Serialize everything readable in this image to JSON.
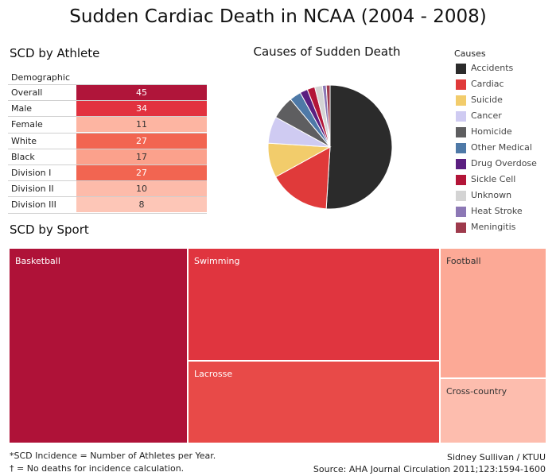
{
  "title": "Sudden Cardiac Death in NCAA (2004 - 2008)",
  "athlete_table": {
    "title": "SCD by Athlete",
    "column_header": "Demographic",
    "rows": [
      {
        "label": "Overall",
        "value": "45",
        "color": "#B0153A",
        "text_color": "#ffffff"
      },
      {
        "label": "Male",
        "value": "34",
        "color": "#E2323F",
        "text_color": "#ffffff"
      },
      {
        "label": "Female",
        "value": "11",
        "color": "#FDB5A2",
        "text_color": "#333333"
      },
      {
        "label": "White",
        "value": "27",
        "color": "#F26551",
        "text_color": "#ffffff"
      },
      {
        "label": "Black",
        "value": "17",
        "color": "#FBA18C",
        "text_color": "#333333"
      },
      {
        "label": "Division I",
        "value": "27",
        "color": "#F26551",
        "text_color": "#ffffff"
      },
      {
        "label": "Division II",
        "value": "10",
        "color": "#FDBBAA",
        "text_color": "#333333"
      },
      {
        "label": "Division III",
        "value": "8",
        "color": "#FDC6B7",
        "text_color": "#333333"
      }
    ]
  },
  "chart_data": {
    "type": "pie",
    "title": "Causes of Sudden Death",
    "legend_title": "Causes",
    "legend_position": "right",
    "slices": [
      {
        "label": "Accidents",
        "value": 51,
        "color": "#2B2B2B"
      },
      {
        "label": "Cardiac",
        "value": 16,
        "color": "#E03A3A"
      },
      {
        "label": "Suicide",
        "value": 9,
        "color": "#F2CC6B"
      },
      {
        "label": "Cancer",
        "value": 7,
        "color": "#CFCBF2"
      },
      {
        "label": "Homicide",
        "value": 6,
        "color": "#5E5E60"
      },
      {
        "label": "Other Medical",
        "value": 3,
        "color": "#4E79A7"
      },
      {
        "label": "Drug Overdose",
        "value": 2,
        "color": "#5B1F80"
      },
      {
        "label": "Sickle Cell",
        "value": 2,
        "color": "#B31538"
      },
      {
        "label": "Unknown",
        "value": 2,
        "color": "#D4D4D4"
      },
      {
        "label": "Heat Stroke",
        "value": 1,
        "color": "#8C78B5"
      },
      {
        "label": "Meningitis",
        "value": 1,
        "color": "#9E3A4C"
      }
    ]
  },
  "sport_treemap": {
    "title": "SCD by Sport",
    "tiles": [
      {
        "label": "Basketball",
        "color": "#AF1238",
        "text_color": "#ffffff"
      },
      {
        "label": "Swimming",
        "color": "#E0353F",
        "text_color": "#ffffff"
      },
      {
        "label": "Lacrosse",
        "color": "#E84A48",
        "text_color": "#ffffff"
      },
      {
        "label": "Football",
        "color": "#FCA996",
        "text_color": "#333333"
      },
      {
        "label": "Cross-country",
        "color": "#FDBDAE",
        "text_color": "#333333"
      }
    ]
  },
  "footer": {
    "note1": "*SCD Incidence = Number of Athletes per Year.",
    "note2": "† = No deaths for incidence calculation.",
    "credit": "Sidney Sullivan / KTUU",
    "source": "Source: AHA Journal Circulation 2011;123:1594-1600"
  }
}
